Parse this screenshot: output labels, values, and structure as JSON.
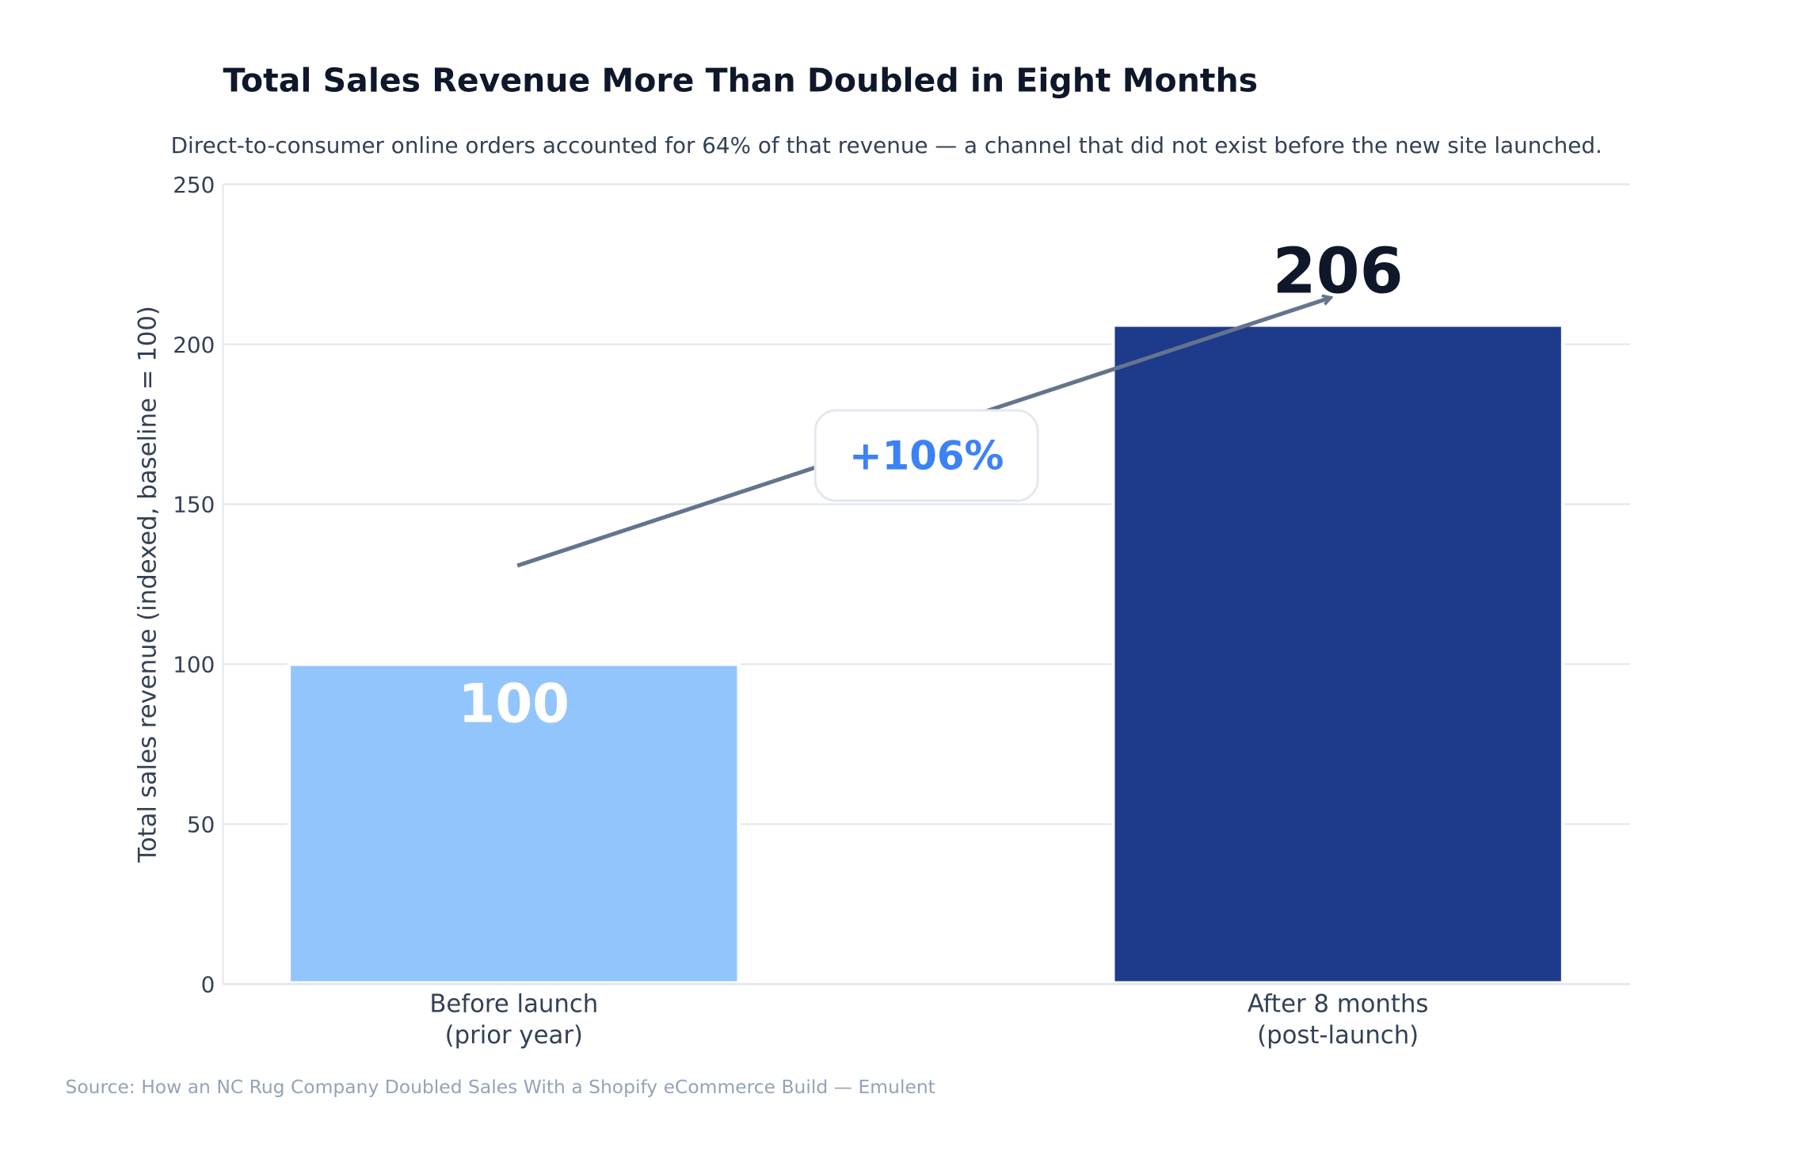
{
  "chart_data": {
    "type": "bar",
    "title": "Total Sales Revenue More Than Doubled in Eight Months",
    "subtitle": "Direct-to-consumer online orders accounted for 64% of that revenue — a channel that did not exist before the new site launched.",
    "ylabel": "Total sales revenue (indexed, baseline = 100)",
    "xlabel": "",
    "ylim": [
      0,
      250
    ],
    "yticks": [
      0,
      50,
      100,
      150,
      200,
      250
    ],
    "grid": true,
    "categories": [
      [
        "Before launch",
        "(prior year)"
      ],
      [
        "After 8 months",
        "(post-launch)"
      ]
    ],
    "values": [
      100,
      206
    ],
    "data_labels": [
      "100",
      "206"
    ],
    "colors": [
      "#93c5fd",
      "#1e3a8a"
    ],
    "label_colors": [
      "#ffffff",
      "#0f172a"
    ],
    "annotation": {
      "text": "+106%",
      "color": "#3b82f6",
      "arrow_color": "#64748b"
    },
    "source": "Source: How an NC Rug Company Doubled Sales With a Shopify eCommerce Build — Emulent"
  }
}
